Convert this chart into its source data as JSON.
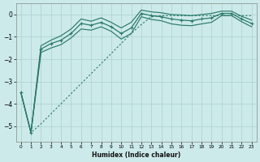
{
  "xlabel": "Humidex (Indice chaleur)",
  "bg_color": "#cdeaea",
  "line_color": "#2a7a6a",
  "xlim": [
    -0.5,
    23.5
  ],
  "ylim": [
    -5.7,
    0.5
  ],
  "x_vals": [
    0,
    1,
    2,
    3,
    4,
    5,
    6,
    7,
    8,
    9,
    10,
    11,
    12,
    13,
    14,
    15,
    16,
    17,
    18,
    19,
    20,
    21,
    22,
    23
  ],
  "y_main": [
    -3.5,
    -5.3,
    -1.55,
    -1.3,
    -1.15,
    -0.85,
    -0.4,
    -0.48,
    -0.35,
    -0.55,
    -0.85,
    -0.6,
    0.05,
    -0.05,
    -0.1,
    -0.2,
    -0.25,
    -0.28,
    -0.2,
    -0.15,
    0.05,
    0.05,
    -0.2,
    -0.4
  ],
  "y_upper": [
    -3.5,
    -5.3,
    -1.4,
    -1.15,
    -0.95,
    -0.65,
    -0.2,
    -0.3,
    -0.15,
    -0.35,
    -0.6,
    -0.35,
    0.2,
    0.12,
    0.08,
    0.0,
    -0.02,
    -0.05,
    0.0,
    0.05,
    0.15,
    0.15,
    -0.08,
    -0.25
  ],
  "y_lower": [
    -3.5,
    -5.3,
    -1.7,
    -1.5,
    -1.35,
    -1.05,
    -0.65,
    -0.7,
    -0.55,
    -0.75,
    -1.1,
    -0.85,
    -0.1,
    -0.22,
    -0.28,
    -0.42,
    -0.48,
    -0.5,
    -0.42,
    -0.35,
    -0.05,
    -0.05,
    -0.32,
    -0.55
  ],
  "y_dotted": [
    -3.5,
    -5.3,
    -4.9,
    -4.45,
    -4.0,
    -3.55,
    -3.1,
    -2.65,
    -2.2,
    -1.75,
    -1.3,
    -0.85,
    -0.45,
    -0.1,
    -0.05,
    -0.05,
    -0.05,
    -0.05,
    -0.05,
    -0.05,
    -0.05,
    -0.05,
    -0.05,
    -0.05
  ],
  "yticks": [
    0,
    -1,
    -2,
    -3,
    -4,
    -5
  ],
  "xticks": [
    0,
    1,
    2,
    3,
    4,
    5,
    6,
    7,
    8,
    9,
    10,
    11,
    12,
    13,
    14,
    15,
    16,
    17,
    18,
    19,
    20,
    21,
    22,
    23
  ],
  "grid_color": "#aacfcf",
  "xlabel_fontsize": 5.5
}
